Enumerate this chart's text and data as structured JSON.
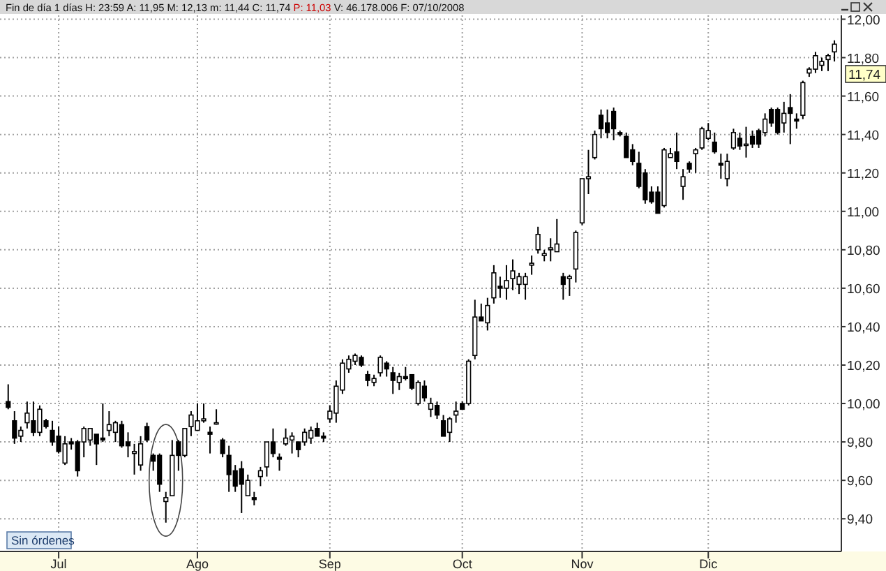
{
  "chart_data": {
    "type": "candlestick",
    "title": "Fin de día 1 días H: 23:59 A: 11,95 M: 12,13 m: 11,44 C: 11,74",
    "subtitle": "P: 11,03",
    "annotations": [
      "V: 46.178.006 F: 07/10/2008",
      "Sin órdenes",
      "11,74"
    ],
    "categories": [
      null,
      null,
      null,
      null,
      null,
      null,
      null,
      null,
      "Jul",
      null,
      null,
      null,
      null,
      null,
      null,
      null,
      null,
      null,
      null,
      null,
      null,
      null,
      null,
      null,
      null,
      null,
      null,
      null,
      null,
      null,
      "Ago",
      null,
      null,
      null,
      null,
      null,
      null,
      null,
      null,
      null,
      null,
      null,
      null,
      null,
      null,
      null,
      null,
      null,
      null,
      null,
      null,
      "Sep",
      null,
      null,
      null,
      null,
      null,
      null,
      null,
      null,
      null,
      null,
      null,
      null,
      null,
      null,
      null,
      null,
      null,
      null,
      null,
      null,
      "Oct",
      null,
      null,
      null,
      null,
      null,
      null,
      null,
      null,
      null,
      null,
      null,
      null,
      null,
      null,
      null,
      null,
      null,
      null,
      "Nov",
      null,
      null,
      null,
      null,
      null,
      null,
      null,
      null,
      null,
      null,
      null,
      null,
      null,
      null,
      null,
      null,
      null,
      null,
      null,
      "Dic",
      null,
      null,
      null,
      null,
      null,
      null,
      null,
      null,
      null,
      null,
      null,
      null,
      null,
      null,
      null,
      null,
      null,
      null,
      null,
      null
    ],
    "ohlc": [
      [
        10.01,
        10.1,
        9.97,
        9.98
      ],
      [
        9.91,
        9.96,
        9.79,
        9.82
      ],
      [
        9.83,
        9.88,
        9.8,
        9.86
      ],
      [
        9.9,
        10.01,
        9.87,
        9.95
      ],
      [
        9.91,
        10.01,
        9.83,
        9.85
      ],
      [
        9.85,
        9.99,
        9.83,
        9.97
      ],
      [
        9.91,
        9.92,
        9.87,
        9.88
      ],
      [
        9.86,
        9.91,
        9.78,
        9.8
      ],
      [
        9.83,
        9.88,
        9.74,
        9.75
      ],
      [
        9.69,
        9.83,
        9.68,
        9.79
      ],
      [
        9.8,
        9.82,
        9.76,
        9.79
      ],
      [
        9.8,
        9.81,
        9.62,
        9.65
      ],
      [
        9.8,
        9.88,
        9.72,
        9.87
      ],
      [
        9.81,
        9.87,
        9.78,
        9.87
      ],
      [
        9.84,
        9.84,
        9.68,
        9.79
      ],
      [
        9.82,
        10.0,
        9.8,
        9.81
      ],
      [
        9.86,
        9.96,
        9.83,
        9.89
      ],
      [
        9.85,
        9.91,
        9.8,
        9.9
      ],
      [
        9.89,
        9.91,
        9.77,
        9.78
      ],
      [
        9.8,
        9.85,
        9.72,
        9.78
      ],
      [
        9.74,
        9.79,
        9.63,
        9.75
      ],
      [
        9.68,
        9.83,
        9.65,
        9.79
      ],
      [
        9.88,
        9.9,
        9.8,
        9.81
      ],
      [
        9.73,
        9.74,
        9.65,
        9.7
      ],
      [
        9.73,
        9.74,
        9.54,
        9.58
      ],
      [
        9.49,
        9.54,
        9.38,
        9.51
      ],
      [
        9.52,
        9.81,
        9.52,
        9.73
      ],
      [
        9.8,
        9.81,
        9.65,
        9.73
      ],
      [
        9.73,
        9.87,
        9.72,
        9.87
      ],
      [
        9.88,
        9.96,
        9.83,
        9.94
      ],
      [
        9.86,
        10.0,
        9.86,
        9.91
      ],
      [
        9.91,
        10.0,
        9.9,
        9.92
      ],
      [
        9.85,
        9.88,
        9.74,
        9.84
      ],
      [
        9.9,
        9.97,
        9.89,
        9.9
      ],
      [
        9.81,
        9.82,
        9.72,
        9.74
      ],
      [
        9.73,
        9.78,
        9.54,
        9.63
      ],
      [
        9.65,
        9.68,
        9.54,
        9.57
      ],
      [
        9.66,
        9.7,
        9.43,
        9.58
      ],
      [
        9.52,
        9.63,
        9.52,
        9.6
      ],
      [
        9.51,
        9.54,
        9.47,
        9.5
      ],
      [
        9.62,
        9.67,
        9.57,
        9.65
      ],
      [
        9.67,
        9.8,
        9.62,
        9.8
      ],
      [
        9.8,
        9.87,
        9.72,
        9.74
      ],
      [
        9.72,
        9.74,
        9.65,
        9.71
      ],
      [
        9.79,
        9.87,
        9.78,
        9.82
      ],
      [
        9.81,
        9.85,
        9.74,
        9.83
      ],
      [
        9.8,
        9.8,
        9.72,
        9.76
      ],
      [
        9.8,
        9.87,
        9.78,
        9.85
      ],
      [
        9.82,
        9.88,
        9.79,
        9.86
      ],
      [
        9.87,
        9.9,
        9.83,
        9.83
      ],
      [
        9.83,
        9.85,
        9.8,
        9.82
      ],
      [
        9.92,
        9.99,
        9.9,
        9.96
      ],
      [
        9.95,
        10.12,
        9.9,
        10.09
      ],
      [
        10.07,
        10.23,
        10.05,
        10.21
      ],
      [
        10.18,
        10.25,
        10.16,
        10.23
      ],
      [
        10.22,
        10.26,
        10.2,
        10.25
      ],
      [
        10.24,
        10.25,
        10.19,
        10.2
      ],
      [
        10.15,
        10.17,
        10.09,
        10.12
      ],
      [
        10.11,
        10.15,
        10.09,
        10.13
      ],
      [
        10.16,
        10.25,
        10.14,
        10.24
      ],
      [
        10.21,
        10.22,
        10.14,
        10.18
      ],
      [
        10.16,
        10.19,
        10.05,
        10.12
      ],
      [
        10.11,
        10.16,
        10.07,
        10.14
      ],
      [
        10.14,
        10.19,
        10.12,
        10.13
      ],
      [
        10.15,
        10.15,
        10.07,
        10.08
      ],
      [
        10.0,
        10.12,
        9.99,
        10.11
      ],
      [
        10.09,
        10.12,
        10.01,
        10.03
      ],
      [
        9.97,
        10.03,
        9.93,
        10.0
      ],
      [
        9.99,
        10.01,
        9.92,
        9.94
      ],
      [
        9.91,
        9.94,
        9.83,
        9.83
      ],
      [
        9.85,
        9.93,
        9.8,
        9.92
      ],
      [
        9.94,
        10.01,
        9.9,
        9.96
      ],
      [
        10.0,
        10.01,
        9.97,
        9.97
      ],
      [
        10.0,
        10.23,
        9.99,
        10.22
      ],
      [
        10.25,
        10.54,
        10.23,
        10.45
      ],
      [
        10.45,
        10.52,
        10.43,
        10.43
      ],
      [
        10.42,
        10.55,
        10.38,
        10.51
      ],
      [
        10.55,
        10.72,
        10.52,
        10.68
      ],
      [
        10.61,
        10.66,
        10.55,
        10.6
      ],
      [
        10.6,
        10.72,
        10.54,
        10.64
      ],
      [
        10.65,
        10.75,
        10.59,
        10.69
      ],
      [
        10.62,
        10.68,
        10.57,
        10.66
      ],
      [
        10.62,
        10.68,
        10.54,
        10.66
      ],
      [
        10.72,
        10.77,
        10.67,
        10.73
      ],
      [
        10.8,
        10.92,
        10.78,
        10.88
      ],
      [
        10.77,
        10.8,
        10.74,
        10.78
      ],
      [
        10.8,
        10.86,
        10.74,
        10.81
      ],
      [
        10.79,
        10.96,
        10.79,
        10.83
      ],
      [
        10.66,
        10.68,
        10.54,
        10.62
      ],
      [
        10.65,
        10.67,
        10.56,
        10.66
      ],
      [
        10.7,
        10.9,
        10.63,
        10.89
      ],
      [
        10.94,
        11.17,
        10.93,
        11.17
      ],
      [
        11.17,
        11.32,
        11.09,
        11.18
      ],
      [
        11.28,
        11.42,
        11.27,
        11.4
      ],
      [
        11.5,
        11.53,
        11.38,
        11.43
      ],
      [
        11.46,
        11.53,
        11.38,
        11.41
      ],
      [
        11.52,
        11.54,
        11.37,
        11.43
      ],
      [
        11.41,
        11.42,
        11.39,
        11.4
      ],
      [
        11.39,
        11.41,
        11.28,
        11.28
      ],
      [
        11.32,
        11.35,
        11.24,
        11.26
      ],
      [
        11.25,
        11.31,
        11.12,
        11.13
      ],
      [
        11.2,
        11.22,
        11.04,
        11.06
      ],
      [
        11.1,
        11.13,
        11.04,
        11.05
      ],
      [
        11.1,
        11.13,
        10.99,
        10.99
      ],
      [
        11.03,
        11.33,
        11.02,
        11.32
      ],
      [
        11.28,
        11.33,
        11.28,
        11.3
      ],
      [
        11.31,
        11.41,
        11.22,
        11.26
      ],
      [
        11.13,
        11.22,
        11.06,
        11.18
      ],
      [
        11.25,
        11.26,
        11.2,
        11.22
      ],
      [
        11.3,
        11.33,
        11.2,
        11.32
      ],
      [
        11.33,
        11.44,
        11.32,
        11.43
      ],
      [
        11.38,
        11.46,
        11.37,
        11.42
      ],
      [
        11.36,
        11.41,
        11.3,
        11.31
      ],
      [
        11.25,
        11.3,
        11.17,
        11.24
      ],
      [
        11.17,
        11.3,
        11.13,
        11.26
      ],
      [
        11.33,
        11.43,
        11.32,
        11.41
      ],
      [
        11.38,
        11.41,
        11.32,
        11.34
      ],
      [
        11.35,
        11.44,
        11.28,
        11.35
      ],
      [
        11.39,
        11.42,
        11.33,
        11.35
      ],
      [
        11.42,
        11.43,
        11.33,
        11.35
      ],
      [
        11.41,
        11.51,
        11.39,
        11.48
      ],
      [
        11.53,
        11.54,
        11.44,
        11.46
      ],
      [
        11.53,
        11.54,
        11.4,
        11.41
      ],
      [
        11.46,
        11.57,
        11.41,
        11.51
      ],
      [
        11.54,
        11.61,
        11.35,
        11.51
      ],
      [
        11.48,
        11.51,
        11.43,
        11.47
      ],
      [
        11.5,
        11.68,
        11.48,
        11.67
      ],
      [
        11.72,
        11.75,
        11.7,
        11.74
      ],
      [
        11.74,
        11.83,
        11.72,
        11.81
      ],
      [
        11.76,
        11.8,
        11.73,
        11.78
      ],
      [
        11.79,
        11.82,
        11.73,
        11.81
      ],
      [
        11.83,
        11.89,
        11.78,
        11.87
      ]
    ],
    "ylim": [
      9.23,
      12.02
    ],
    "yticks": [
      {
        "value": 9.4,
        "label": "9,40"
      },
      {
        "value": 9.6,
        "label": "9,60"
      },
      {
        "value": 9.8,
        "label": "9,80"
      },
      {
        "value": 10,
        "label": "10,00"
      },
      {
        "value": 10.2,
        "label": "10,20"
      },
      {
        "value": 10.4,
        "label": "10,40"
      },
      {
        "value": 10.6,
        "label": "10,60"
      },
      {
        "value": 10.8,
        "label": "10,80"
      },
      {
        "value": 11,
        "label": "11,00"
      },
      {
        "value": 11.2,
        "label": "11,20"
      },
      {
        "value": 11.4,
        "label": "11,40"
      },
      {
        "value": 11.6,
        "label": "11,60"
      },
      {
        "value": 11.8,
        "label": "11,80"
      },
      {
        "value": 12,
        "label": "12,00"
      }
    ],
    "grid": true
  }
}
